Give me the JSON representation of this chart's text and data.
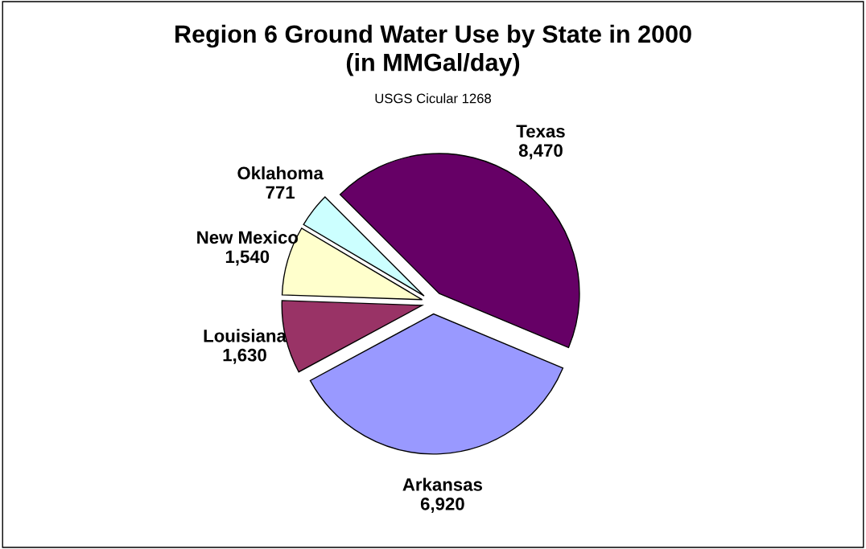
{
  "chart_data": {
    "type": "pie",
    "title": "Region 6 Ground Water Use by State in 2000\n(in MMGal/day)",
    "subtitle": "USGS Cicular 1268",
    "categories": [
      "Texas",
      "Arkansas",
      "Louisiana",
      "New Mexico",
      "Oklahoma"
    ],
    "values": [
      8470,
      6920,
      1630,
      1540,
      771
    ],
    "value_labels": [
      "8,470",
      "6,920",
      "1,630",
      "1,540",
      "771"
    ],
    "colors": [
      "#660066",
      "#9999ff",
      "#993366",
      "#ffffcc",
      "#ccffff"
    ]
  }
}
